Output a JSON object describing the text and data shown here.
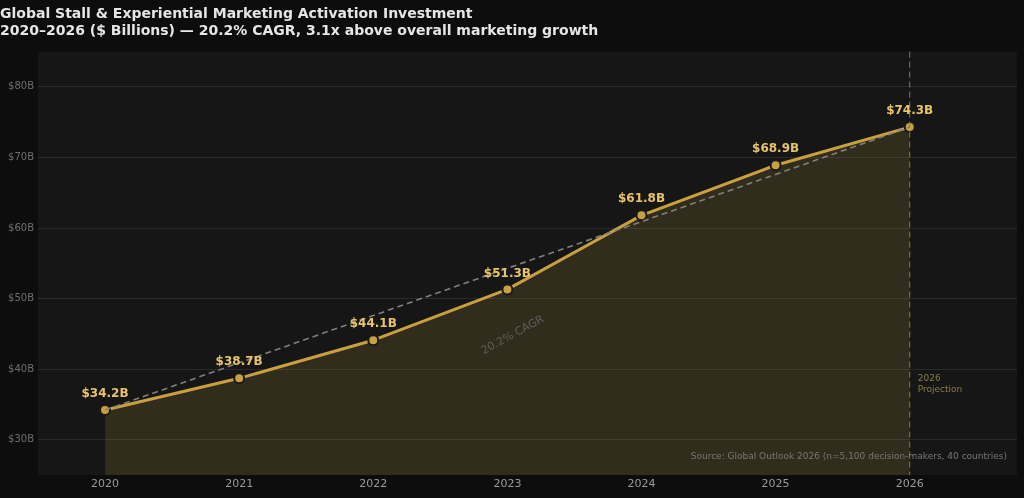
{
  "chart_data": {
    "type": "area",
    "title": "Global Stall & Experiential Marketing Activation Investment\n2020–2026 ($ Billions) — 20.2% CAGR, 3.1x above overall marketing growth",
    "x": [
      2020,
      2021,
      2022,
      2023,
      2024,
      2025,
      2026
    ],
    "series": [
      {
        "color": "#c9a040",
        "marker": "circle",
        "values": [
          34.2,
          38.7,
          44.1,
          51.3,
          61.8,
          68.9,
          74.3
        ],
        "value_labels": [
          "$34.2B",
          "$38.7B",
          "$44.1B",
          "$51.3B",
          "$61.8B",
          "$68.9B",
          "$74.3B"
        ]
      },
      {
        "type": "line",
        "color": "#808080",
        "line_style": "dashed",
        "marker": "none",
        "x": [
          2020,
          2021,
          2022,
          2023,
          2024,
          2025,
          2026
        ],
        "values": [
          34.2,
          40.9,
          47.6,
          54.3,
          60.9,
          67.6,
          74.3
        ]
      }
    ],
    "xlim": [
      2019.5,
      2026.8
    ],
    "xticks": [
      2020,
      2021,
      2022,
      2023,
      2024,
      2025,
      2026
    ],
    "ylim": [
      25,
      85
    ],
    "yticks": [
      {
        "value": 30,
        "label": "$30B"
      },
      {
        "value": 40,
        "label": "$40B"
      },
      {
        "value": 50,
        "label": "$50B"
      },
      {
        "value": 60,
        "label": "$60B"
      },
      {
        "value": 70,
        "label": "$70B"
      },
      {
        "value": 80,
        "label": "$80B"
      }
    ],
    "grid": "y",
    "legend": false,
    "ref_lines": [
      {
        "axis": "x",
        "value": 2026,
        "label": "2026 Projection",
        "color": "#8a7a4a",
        "line_style": "dashed"
      }
    ],
    "annotations": [
      "Source: Global Outlook 2026 (n=5,100 decision-makers, 40 countries)",
      "20.2% CAGR"
    ]
  }
}
